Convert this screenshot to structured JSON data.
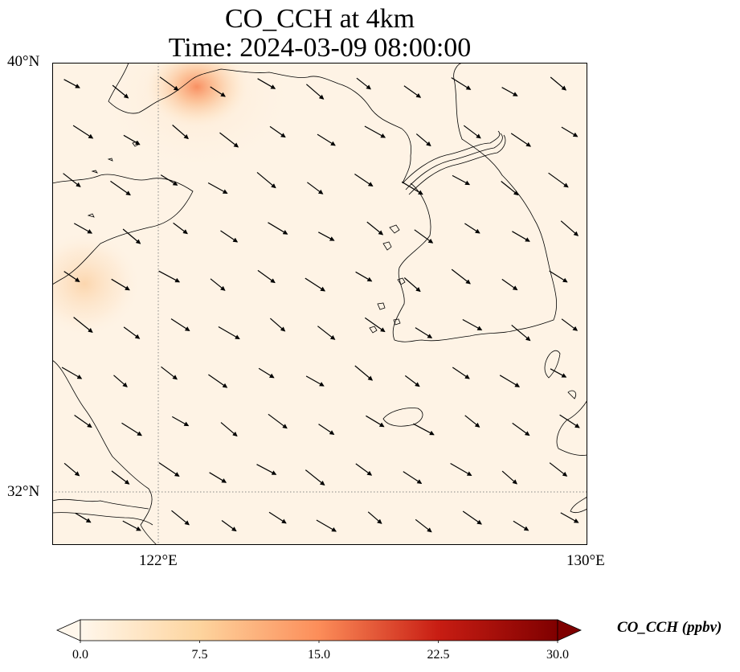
{
  "title": {
    "line1": "CO_CCH at 4km",
    "line2": "Time: 2024-03-09 08:00:00"
  },
  "map": {
    "lat_labels": [
      "40°N",
      "32°N"
    ],
    "lon_labels": [
      "122°E",
      "130°E"
    ],
    "gridline_style": "dotted gray",
    "colormap": "OrRd",
    "concentration_hotspots": [
      {
        "region": "Liaodong coast (north-west corner)",
        "peak_ppbv": 13
      },
      {
        "region": "Shandong peninsula (west edge)",
        "peak_ppbv": 3
      }
    ],
    "wind_arrows": {
      "prevailing_direction": "north-west to south-east",
      "color": "#000000"
    }
  },
  "colorbar": {
    "label": "CO_CCH (ppbv)",
    "ticks": [
      "0.0",
      "7.5",
      "15.0",
      "22.5",
      "30.0"
    ],
    "range": [
      0,
      30
    ],
    "extend": "both",
    "colors": [
      "#fff7ec",
      "#fdd49e",
      "#fc8d59",
      "#d7301f",
      "#7f0000"
    ]
  }
}
